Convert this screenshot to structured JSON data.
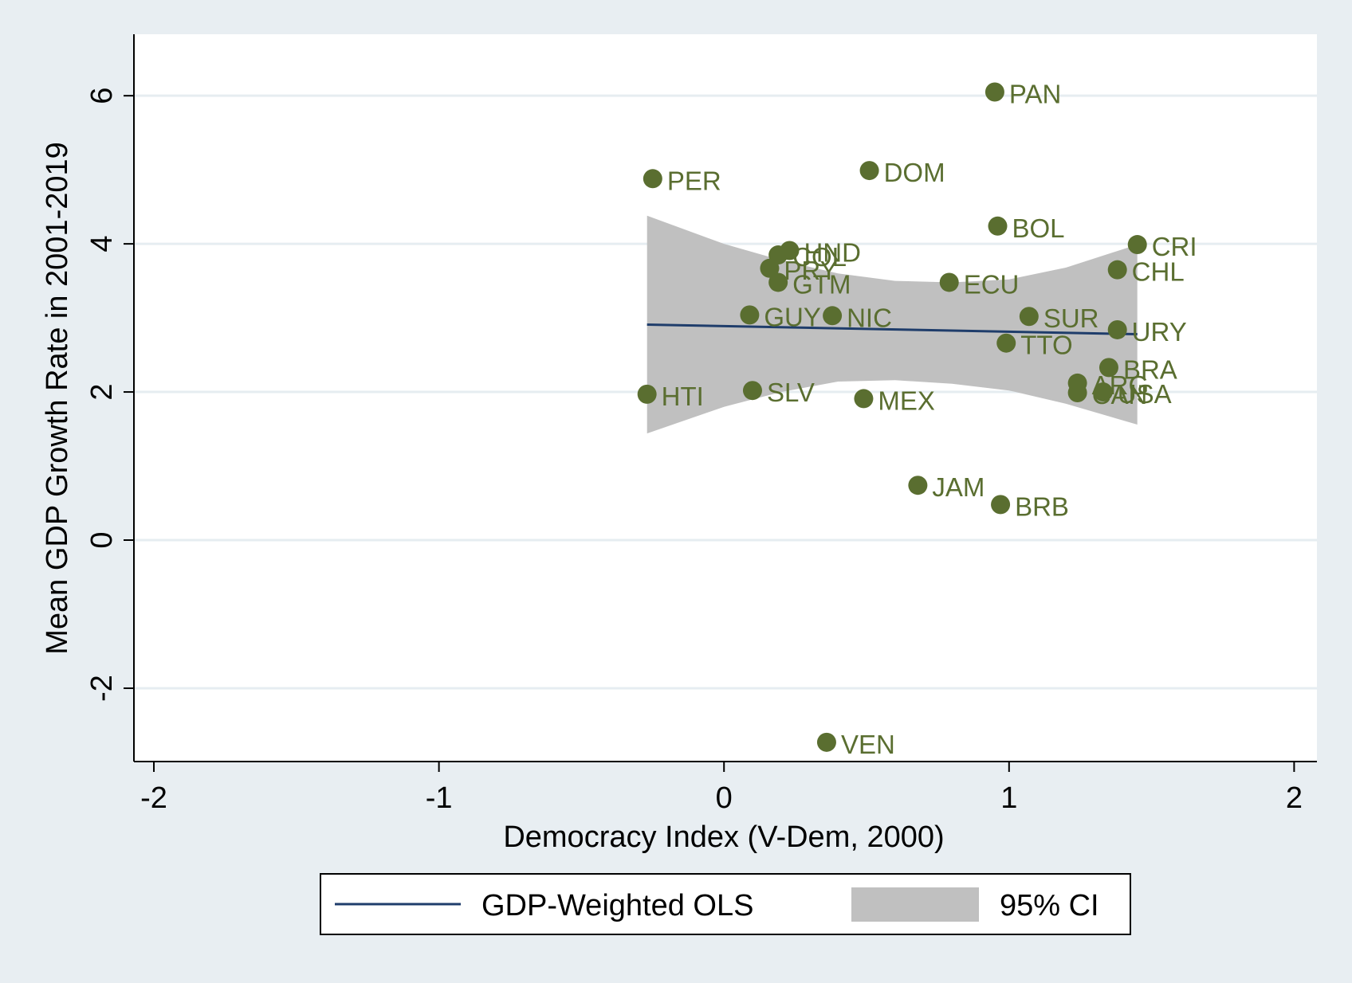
{
  "chart_data": {
    "type": "scatter",
    "title": "",
    "xlabel": "Democracy Index (V-Dem, 2000)",
    "ylabel": "Mean GDP Growth Rate in 2001-2019",
    "xlim": [
      -2.07,
      2.08
    ],
    "ylim": [
      -2.99,
      6.83
    ],
    "xticks": [
      -2,
      -1,
      0,
      1,
      2
    ],
    "yticks": [
      -2,
      0,
      2,
      4,
      6
    ],
    "grid": "horizontal",
    "legend_position": "bottom",
    "colors": {
      "background": "#e8eef2",
      "plot_area": "#ffffff",
      "points": "#5a6e30",
      "fit_line": "#1f3d6b",
      "ci_band": "#c0c0c0",
      "gridline": "#e6edf1"
    },
    "points": [
      {
        "label": "PAN",
        "x": 0.95,
        "y": 6.05
      },
      {
        "label": "PER",
        "x": -0.25,
        "y": 4.88
      },
      {
        "label": "DOM",
        "x": 0.51,
        "y": 4.99
      },
      {
        "label": "BOL",
        "x": 0.96,
        "y": 4.24
      },
      {
        "label": "CRI",
        "x": 1.45,
        "y": 3.99
      },
      {
        "label": "HND",
        "x": 0.23,
        "y": 3.91
      },
      {
        "label": "COL",
        "x": 0.19,
        "y": 3.85
      },
      {
        "label": "PRY",
        "x": 0.16,
        "y": 3.67
      },
      {
        "label": "CHL",
        "x": 1.38,
        "y": 3.65
      },
      {
        "label": "GTM",
        "x": 0.19,
        "y": 3.48
      },
      {
        "label": "ECU",
        "x": 0.79,
        "y": 3.48
      },
      {
        "label": "GUY",
        "x": 0.09,
        "y": 3.04
      },
      {
        "label": "NIC",
        "x": 0.38,
        "y": 3.03
      },
      {
        "label": "SUR",
        "x": 1.07,
        "y": 3.02
      },
      {
        "label": "URY",
        "x": 1.38,
        "y": 2.84
      },
      {
        "label": "TTO",
        "x": 0.99,
        "y": 2.66
      },
      {
        "label": "BRA",
        "x": 1.35,
        "y": 2.33
      },
      {
        "label": "ARG",
        "x": 1.24,
        "y": 2.12
      },
      {
        "label": "CAN",
        "x": 1.24,
        "y": 1.99
      },
      {
        "label": "USA",
        "x": 1.33,
        "y": 2.0
      },
      {
        "label": "HTI",
        "x": -0.27,
        "y": 1.97
      },
      {
        "label": "SLV",
        "x": 0.1,
        "y": 2.02
      },
      {
        "label": "MEX",
        "x": 0.49,
        "y": 1.91
      },
      {
        "label": "JAM",
        "x": 0.68,
        "y": 0.74
      },
      {
        "label": "BRB",
        "x": 0.97,
        "y": 0.48
      },
      {
        "label": "VEN",
        "x": 0.36,
        "y": -2.73
      }
    ],
    "fit_line": {
      "x": [
        -0.27,
        1.45
      ],
      "y": [
        2.91,
        2.78
      ]
    },
    "ci_band": {
      "x": [
        -0.27,
        0.0,
        0.2,
        0.4,
        0.6,
        0.8,
        1.0,
        1.2,
        1.45
      ],
      "upper": [
        4.38,
        4.0,
        3.78,
        3.6,
        3.5,
        3.48,
        3.52,
        3.68,
        3.99
      ],
      "lower": [
        1.44,
        1.8,
        2.0,
        2.14,
        2.16,
        2.11,
        2.02,
        1.84,
        1.56
      ]
    },
    "legend": [
      {
        "label": "GDP-Weighted OLS",
        "kind": "line"
      },
      {
        "label": "95% CI",
        "kind": "band"
      }
    ]
  }
}
